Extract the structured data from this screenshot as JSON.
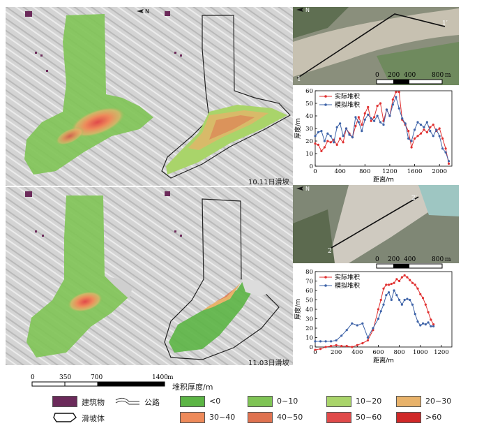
{
  "maps": {
    "north_label": "N",
    "caption_top": "10.11日滑坡",
    "caption_bottom": "11.03日滑坡",
    "photo_top": {
      "start_label": "1",
      "end_label": "1′"
    },
    "photo_bottom": {
      "start_label": "2",
      "end_label": "2′"
    },
    "photo_scale": {
      "labels": [
        "0",
        "200",
        "400",
        "800"
      ],
      "unit": "m"
    },
    "main_scale": {
      "labels": [
        "0",
        "350",
        "700",
        "1400"
      ],
      "unit": "m"
    }
  },
  "legend": {
    "title": "堆积厚度/m",
    "items": [
      {
        "label": "建筑物",
        "color": "#6b2a5a",
        "kind": "fill"
      },
      {
        "label": "公路",
        "color": "#ffffff",
        "kind": "road"
      },
      {
        "label": "<0",
        "color": "#5cb545",
        "kind": "fill"
      },
      {
        "label": "0~10",
        "color": "#7fc455",
        "kind": "fill"
      },
      {
        "label": "10~20",
        "color": "#a9d46a",
        "kind": "fill"
      },
      {
        "label": "20~30",
        "color": "#e8b26a",
        "kind": "fill"
      },
      {
        "label": "滑坡体",
        "color": "#ffffff",
        "kind": "slide"
      },
      {
        "label": "30~40",
        "color": "#ee8a5a",
        "kind": "fill"
      },
      {
        "label": "40~50",
        "color": "#df7250",
        "kind": "fill"
      },
      {
        "label": "50~60",
        "color": "#e04a4a",
        "kind": "fill"
      },
      {
        "label": ">60",
        "color": "#d02828",
        "kind": "fill"
      }
    ]
  },
  "chart_data": [
    {
      "type": "line",
      "xlabel": "距离/m",
      "ylabel": "厚度/m",
      "xlim": [
        0,
        2200
      ],
      "ylim": [
        0,
        60
      ],
      "xticks": [
        0,
        400,
        800,
        1200,
        1600,
        2000
      ],
      "yticks": [
        0,
        10,
        20,
        30,
        40,
        50,
        60
      ],
      "legend_position": "top-left",
      "series": [
        {
          "name": "实际堆积",
          "color": "#e03030",
          "x": [
            0,
            50,
            100,
            150,
            200,
            250,
            300,
            350,
            400,
            450,
            500,
            550,
            600,
            650,
            700,
            750,
            800,
            850,
            900,
            950,
            1000,
            1050,
            1100,
            1150,
            1200,
            1250,
            1300,
            1350,
            1400,
            1450,
            1500,
            1550,
            1600,
            1650,
            1700,
            1750,
            1800,
            1850,
            1900,
            1950,
            2000,
            2050,
            2100,
            2150
          ],
          "y": [
            18,
            17,
            12,
            15,
            20,
            19,
            21,
            17,
            22,
            19,
            30,
            26,
            23,
            32,
            39,
            33,
            42,
            47,
            36,
            39,
            48,
            50,
            36,
            45,
            40,
            53,
            59,
            59,
            37,
            33,
            28,
            15,
            22,
            24,
            26,
            29,
            27,
            31,
            33,
            28,
            30,
            22,
            14,
            2
          ]
        },
        {
          "name": "模拟堆积",
          "color": "#3e63a8",
          "x": [
            0,
            50,
            100,
            150,
            200,
            250,
            300,
            350,
            400,
            450,
            500,
            550,
            600,
            650,
            700,
            750,
            800,
            850,
            900,
            950,
            1000,
            1050,
            1100,
            1150,
            1200,
            1250,
            1300,
            1350,
            1400,
            1450,
            1500,
            1550,
            1600,
            1650,
            1700,
            1750,
            1800,
            1850,
            1900,
            1950,
            2000,
            2050,
            2100,
            2150
          ],
          "y": [
            24,
            27,
            28,
            20,
            26,
            24,
            19,
            31,
            34,
            24,
            30,
            25,
            23,
            39,
            35,
            28,
            37,
            41,
            38,
            36,
            40,
            35,
            33,
            45,
            40,
            49,
            55,
            46,
            38,
            34,
            22,
            20,
            29,
            35,
            33,
            31,
            35,
            28,
            24,
            29,
            24,
            14,
            11,
            4
          ]
        }
      ]
    },
    {
      "type": "line",
      "xlabel": "距离/m",
      "ylabel": "厚度/m",
      "xlim": [
        0,
        1300
      ],
      "ylim": [
        0,
        80
      ],
      "xticks": [
        0,
        200,
        400,
        600,
        800,
        1000,
        1200
      ],
      "yticks": [
        0,
        10,
        20,
        30,
        40,
        50,
        60,
        70,
        80
      ],
      "legend_position": "top-left",
      "series": [
        {
          "name": "实际堆积",
          "color": "#e03030",
          "x": [
            0,
            50,
            100,
            150,
            200,
            250,
            300,
            350,
            400,
            450,
            500,
            550,
            600,
            625,
            650,
            675,
            700,
            725,
            750,
            775,
            800,
            825,
            850,
            875,
            900,
            925,
            950,
            975,
            1000,
            1025,
            1050,
            1075,
            1100,
            1125
          ],
          "y": [
            -3,
            -2,
            0,
            1,
            2,
            1,
            1,
            0,
            2,
            4,
            7,
            18,
            40,
            50,
            62,
            66,
            66,
            67,
            68,
            72,
            70,
            74,
            76,
            74,
            71,
            68,
            66,
            62,
            56,
            52,
            45,
            37,
            29,
            24
          ]
        },
        {
          "name": "模拟堆积",
          "color": "#3e63a8",
          "x": [
            0,
            50,
            100,
            150,
            200,
            250,
            300,
            350,
            400,
            450,
            500,
            550,
            600,
            625,
            650,
            675,
            700,
            725,
            750,
            775,
            800,
            825,
            850,
            875,
            900,
            925,
            950,
            975,
            1000,
            1025,
            1050,
            1075,
            1100,
            1125
          ],
          "y": [
            6,
            6,
            6,
            6,
            7,
            12,
            18,
            25,
            23,
            25,
            10,
            20,
            30,
            38,
            45,
            55,
            58,
            50,
            60,
            55,
            50,
            45,
            50,
            51,
            50,
            45,
            35,
            27,
            23,
            25,
            24,
            26,
            22,
            22
          ]
        }
      ]
    }
  ]
}
